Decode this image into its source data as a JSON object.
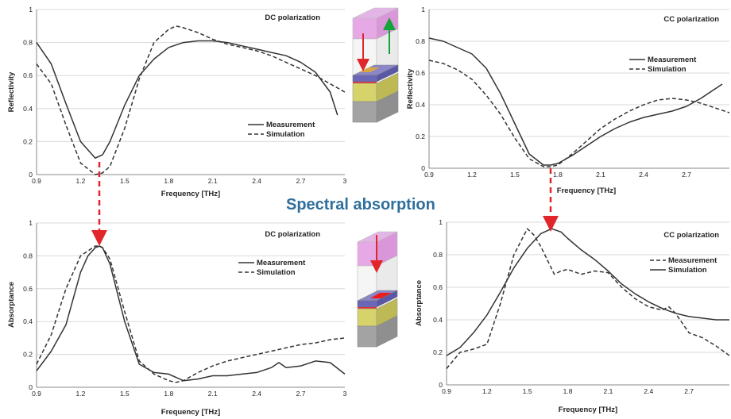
{
  "center_title": "Spectral absorption",
  "colors": {
    "title": "#2f6f9c",
    "arrow": "#e0262a",
    "green_arrow": "#12a33a",
    "line": "#333333"
  },
  "chart_data": [
    {
      "type": "line",
      "panel": "top-left",
      "title": "DC polarization",
      "xlabel": "Frequency [THz]",
      "ylabel": "Reflectivity",
      "xlim": [
        0.9,
        3.0
      ],
      "ylim": [
        0,
        1
      ],
      "xticks": [
        "0.9",
        "1.2",
        "1.5",
        "1.8",
        "2.1",
        "2.4",
        "2.7",
        "3"
      ],
      "yticks": [
        "0",
        "0.2",
        "0.4",
        "0.6",
        "0.8",
        "1"
      ],
      "legend_position": "center-right",
      "series": [
        {
          "name": "Measurement",
          "style": "solid",
          "x": [
            0.9,
            1.0,
            1.1,
            1.2,
            1.3,
            1.35,
            1.4,
            1.5,
            1.6,
            1.7,
            1.8,
            1.9,
            2.0,
            2.1,
            2.2,
            2.3,
            2.4,
            2.5,
            2.6,
            2.7,
            2.8,
            2.9,
            2.95
          ],
          "y": [
            0.8,
            0.67,
            0.43,
            0.2,
            0.1,
            0.12,
            0.2,
            0.42,
            0.6,
            0.7,
            0.77,
            0.8,
            0.81,
            0.81,
            0.8,
            0.78,
            0.76,
            0.74,
            0.72,
            0.68,
            0.62,
            0.5,
            0.36
          ]
        },
        {
          "name": "Simulation",
          "style": "dashed",
          "x": [
            0.9,
            1.0,
            1.1,
            1.2,
            1.3,
            1.35,
            1.4,
            1.5,
            1.6,
            1.7,
            1.8,
            1.85,
            1.9,
            2.0,
            2.1,
            2.2,
            2.3,
            2.4,
            2.5,
            2.6,
            2.7,
            2.8,
            2.9,
            3.0
          ],
          "y": [
            0.67,
            0.55,
            0.3,
            0.07,
            0.0,
            0.01,
            0.05,
            0.28,
            0.58,
            0.8,
            0.88,
            0.9,
            0.89,
            0.86,
            0.82,
            0.79,
            0.77,
            0.75,
            0.72,
            0.68,
            0.64,
            0.6,
            0.55,
            0.5
          ]
        }
      ]
    },
    {
      "type": "line",
      "panel": "top-right",
      "title": "CC polarization",
      "xlabel": "Frequency [THz]",
      "ylabel": "Reflectivity",
      "xlim": [
        0.9,
        3.0
      ],
      "ylim": [
        0,
        1
      ],
      "xticks": [
        "0.9",
        "1.2",
        "1.5",
        "1.8",
        "2.1",
        "2.4",
        "2.7"
      ],
      "yticks": [
        "0",
        "0.2",
        "0.4",
        "0.6",
        "0.8",
        "1"
      ],
      "legend_position": "top-right",
      "series": [
        {
          "name": "Measurement",
          "style": "solid",
          "x": [
            0.9,
            1.0,
            1.1,
            1.2,
            1.3,
            1.4,
            1.5,
            1.6,
            1.7,
            1.75,
            1.8,
            1.9,
            2.0,
            2.1,
            2.2,
            2.3,
            2.4,
            2.5,
            2.6,
            2.7,
            2.8,
            2.9,
            2.95
          ],
          "y": [
            0.82,
            0.8,
            0.76,
            0.72,
            0.63,
            0.47,
            0.28,
            0.09,
            0.02,
            0.02,
            0.03,
            0.08,
            0.14,
            0.2,
            0.25,
            0.29,
            0.32,
            0.34,
            0.36,
            0.39,
            0.44,
            0.5,
            0.53
          ]
        },
        {
          "name": "Simulation",
          "style": "dashed",
          "x": [
            0.9,
            1.0,
            1.1,
            1.2,
            1.3,
            1.4,
            1.5,
            1.6,
            1.7,
            1.75,
            1.8,
            1.9,
            2.0,
            2.1,
            2.2,
            2.3,
            2.4,
            2.5,
            2.6,
            2.7,
            2.8,
            2.9,
            3.0
          ],
          "y": [
            0.68,
            0.66,
            0.62,
            0.56,
            0.46,
            0.34,
            0.19,
            0.06,
            0.01,
            0.01,
            0.02,
            0.09,
            0.17,
            0.25,
            0.31,
            0.36,
            0.4,
            0.43,
            0.44,
            0.43,
            0.41,
            0.38,
            0.35
          ]
        }
      ]
    },
    {
      "type": "line",
      "panel": "bottom-left",
      "title": "DC polarization",
      "xlabel": "Frequency [THz]",
      "ylabel": "Absorptance",
      "xlim": [
        0.9,
        3.0
      ],
      "ylim": [
        0,
        1
      ],
      "xticks": [
        "0.9",
        "1.2",
        "1.5",
        "1.8",
        "2.1",
        "2.4",
        "2.7",
        "3"
      ],
      "yticks": [
        "0",
        "0.2",
        "0.4",
        "0.6",
        "0.8",
        "1"
      ],
      "legend_position": "top-right",
      "series": [
        {
          "name": "Measurement",
          "style": "solid",
          "x": [
            0.9,
            1.0,
            1.1,
            1.2,
            1.25,
            1.3,
            1.33,
            1.35,
            1.4,
            1.5,
            1.6,
            1.7,
            1.8,
            1.9,
            2.0,
            2.1,
            2.2,
            2.3,
            2.4,
            2.5,
            2.55,
            2.6,
            2.7,
            2.8,
            2.9,
            3.0
          ],
          "y": [
            0.1,
            0.22,
            0.38,
            0.7,
            0.8,
            0.85,
            0.86,
            0.85,
            0.75,
            0.4,
            0.14,
            0.09,
            0.08,
            0.04,
            0.05,
            0.07,
            0.07,
            0.08,
            0.09,
            0.12,
            0.15,
            0.12,
            0.13,
            0.16,
            0.15,
            0.08
          ]
        },
        {
          "name": "Simulation",
          "style": "dashed",
          "x": [
            0.9,
            1.0,
            1.1,
            1.2,
            1.3,
            1.32,
            1.35,
            1.4,
            1.5,
            1.6,
            1.7,
            1.8,
            1.85,
            1.9,
            2.0,
            2.1,
            2.2,
            2.3,
            2.4,
            2.5,
            2.6,
            2.7,
            2.8,
            2.9,
            3.0
          ],
          "y": [
            0.14,
            0.32,
            0.6,
            0.8,
            0.86,
            0.86,
            0.85,
            0.78,
            0.46,
            0.16,
            0.08,
            0.04,
            0.03,
            0.04,
            0.09,
            0.13,
            0.16,
            0.18,
            0.2,
            0.22,
            0.24,
            0.26,
            0.27,
            0.29,
            0.3
          ]
        }
      ]
    },
    {
      "type": "line",
      "panel": "bottom-right",
      "title": "CC polarization",
      "xlabel": "Frequency [THz]",
      "ylabel": "Absorptance",
      "xlim": [
        0.9,
        3.0
      ],
      "ylim": [
        0,
        1
      ],
      "xticks": [
        "0.9",
        "1.2",
        "1.5",
        "1.8",
        "2.1",
        "2.4",
        "2.7"
      ],
      "yticks": [
        "0",
        "0.2",
        "0.4",
        "0.6",
        "0.8",
        "1"
      ],
      "legend_position": "top-right",
      "series": [
        {
          "name": "Measurement",
          "style": "dashed",
          "x": [
            0.9,
            1.0,
            1.1,
            1.2,
            1.3,
            1.4,
            1.5,
            1.55,
            1.6,
            1.7,
            1.75,
            1.8,
            1.9,
            2.0,
            2.1,
            2.2,
            2.3,
            2.4,
            2.5,
            2.55,
            2.6,
            2.7,
            2.8,
            2.9,
            3.0
          ],
          "y": [
            0.1,
            0.2,
            0.22,
            0.25,
            0.5,
            0.8,
            0.96,
            0.92,
            0.85,
            0.68,
            0.7,
            0.71,
            0.68,
            0.7,
            0.69,
            0.6,
            0.53,
            0.48,
            0.46,
            0.48,
            0.44,
            0.32,
            0.29,
            0.24,
            0.18
          ]
        },
        {
          "name": "Simulation",
          "style": "solid",
          "x": [
            0.9,
            1.0,
            1.1,
            1.2,
            1.3,
            1.4,
            1.5,
            1.6,
            1.68,
            1.75,
            1.8,
            1.9,
            2.0,
            2.1,
            2.2,
            2.3,
            2.4,
            2.5,
            2.6,
            2.7,
            2.8,
            2.9,
            3.0
          ],
          "y": [
            0.18,
            0.23,
            0.32,
            0.43,
            0.57,
            0.72,
            0.84,
            0.93,
            0.96,
            0.94,
            0.9,
            0.83,
            0.77,
            0.7,
            0.62,
            0.56,
            0.51,
            0.47,
            0.44,
            0.42,
            0.41,
            0.4,
            0.4
          ]
        }
      ]
    }
  ]
}
